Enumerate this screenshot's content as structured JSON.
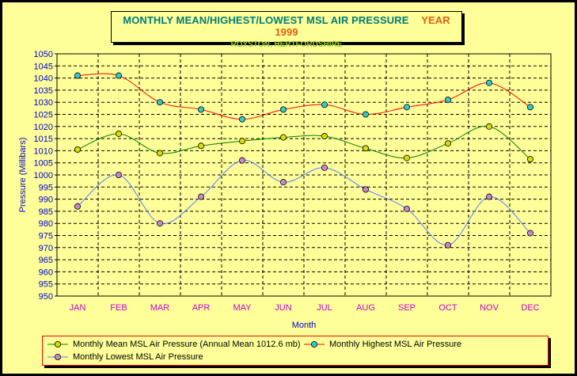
{
  "title": {
    "main": "MONTHLY MEAN/HIGHEST/LOWEST MSL AIR PRESSURE",
    "year": "YEAR 1999",
    "subtitle": "ROYSTON, HERTFORDSHIRE"
  },
  "colors": {
    "background": "#ffff99",
    "title_main": "#007b7b",
    "title_year": "#e06010",
    "subtitle": "#9acd32",
    "axis_text": "#0000cc",
    "x_tick_text": "#cc00cc",
    "grid": "#000000"
  },
  "chart_data": {
    "type": "line",
    "title": "MONTHLY MEAN/HIGHEST/LOWEST MSL AIR PRESSURE",
    "xlabel": "Month",
    "ylabel": "Pressure (Millibars)",
    "ylim": [
      950,
      1050
    ],
    "ytick_step": 5,
    "grid": true,
    "legend_position": "bottom",
    "categories": [
      "JAN",
      "FEB",
      "MAR",
      "APR",
      "MAY",
      "JUN",
      "JUL",
      "AUG",
      "SEP",
      "OCT",
      "NOV",
      "DEC"
    ],
    "series": [
      {
        "name": "Monthly Mean MSL Air Pressure (Annual Mean 1012.6 mb)",
        "line_color": "#008000",
        "marker_color": "#dddd00",
        "values": [
          1010.5,
          1017,
          1009,
          1012,
          1014,
          1015.5,
          1016,
          1011,
          1007,
          1013,
          1020,
          1006.5
        ]
      },
      {
        "name": "Monthly Highest MSL Air Pressure",
        "line_color": "#ff0000",
        "marker_color": "#33cccc",
        "values": [
          1041,
          1041,
          1030,
          1027,
          1023,
          1027,
          1029,
          1025,
          1028,
          1031,
          1038,
          1028
        ]
      },
      {
        "name": "Monthly Lowest MSL Air Pressure",
        "line_color": "#4d7fff",
        "marker_color": "#cc88cc",
        "values": [
          987,
          1000,
          980,
          991,
          1006,
          997,
          1003,
          994,
          986,
          971,
          991,
          976
        ]
      }
    ]
  }
}
